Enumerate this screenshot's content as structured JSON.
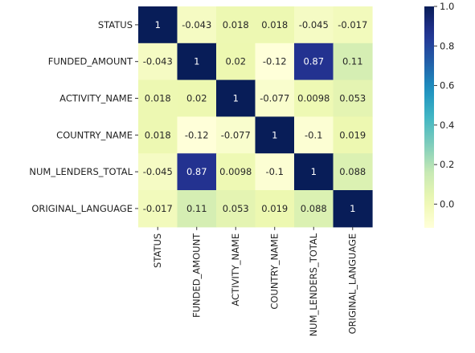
{
  "chart_data": {
    "type": "heatmap",
    "title": "",
    "xlabel": "",
    "ylabel": "",
    "row_labels": [
      "STATUS",
      "FUNDED_AMOUNT",
      "ACTIVITY_NAME",
      "COUNTRY_NAME",
      "NUM_LENDERS_TOTAL",
      "ORIGINAL_LANGUAGE"
    ],
    "col_labels": [
      "STATUS",
      "FUNDED_AMOUNT",
      "ACTIVITY_NAME",
      "COUNTRY_NAME",
      "NUM_LENDERS_TOTAL",
      "ORIGINAL_LANGUAGE"
    ],
    "values": [
      [
        1,
        -0.043,
        0.018,
        0.018,
        -0.045,
        -0.017
      ],
      [
        -0.043,
        1,
        0.02,
        -0.12,
        0.87,
        0.11
      ],
      [
        0.018,
        0.02,
        1,
        -0.077,
        0.0098,
        0.053
      ],
      [
        0.018,
        -0.12,
        -0.077,
        1,
        -0.1,
        0.019
      ],
      [
        -0.045,
        0.87,
        0.0098,
        -0.1,
        1,
        0.088
      ],
      [
        -0.017,
        0.11,
        0.053,
        0.019,
        0.088,
        1
      ]
    ],
    "annotations": [
      [
        "1",
        "-0.043",
        "0.018",
        "0.018",
        "-0.045",
        "-0.017"
      ],
      [
        "-0.043",
        "1",
        "0.02",
        "-0.12",
        "0.87",
        "0.11"
      ],
      [
        "0.018",
        "0.02",
        "1",
        "-0.077",
        "0.0098",
        "0.053"
      ],
      [
        "0.018",
        "-0.12",
        "-0.077",
        "1",
        "-0.1",
        "0.019"
      ],
      [
        "-0.045",
        "0.87",
        "0.0098",
        "-0.1",
        "1",
        "0.088"
      ],
      [
        "-0.017",
        "0.11",
        "0.053",
        "0.019",
        "0.088",
        "1"
      ]
    ],
    "colormap": "YlGnBu",
    "vmin": -0.12,
    "vmax": 1.0,
    "colorbar": {
      "ticks": [
        0.0,
        0.2,
        0.4,
        0.6,
        0.8,
        1.0
      ],
      "tick_labels": [
        "0.0",
        "0.2",
        "0.4",
        "0.6",
        "0.8",
        "1.0"
      ]
    }
  }
}
